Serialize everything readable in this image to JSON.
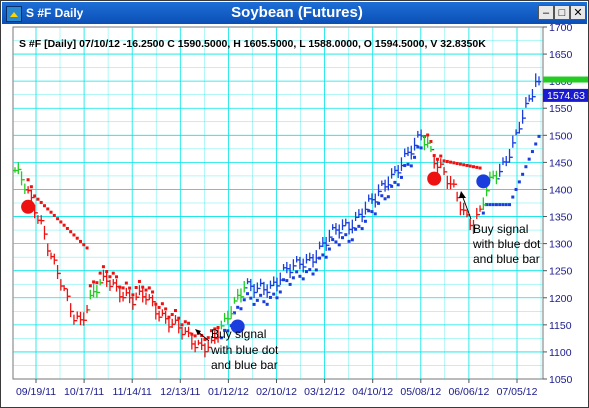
{
  "window": {
    "title": "S #F Daily",
    "chart_title": "Soybean (Futures)",
    "min_glyph": "–",
    "max_glyph": "□",
    "close_glyph": "✕"
  },
  "info_line": "S #F [Daily] 07/10/12  -16.2500 C 1590.5000, H 1605.5000, L 1588.0000, O 1594.5000, V 32.8350K",
  "annotations": [
    {
      "lines": [
        "Buy signal",
        "with blue dot",
        "and blue bar"
      ]
    },
    {
      "lines": [
        "Buy signal",
        "with blue dot",
        "and blue bar"
      ]
    }
  ],
  "colors": {
    "green": "#22cc22",
    "red": "#ee1111",
    "blue": "#1a3ddd",
    "grid": "#00e5e5",
    "axis_text": "#1a1a8c",
    "price_box": "#1a1ad0"
  },
  "chart_data": {
    "type": "ohlc",
    "x_tick_labels": [
      "09/19/11",
      "10/17/11",
      "11/14/11",
      "12/13/11",
      "01/12/12",
      "02/10/12",
      "03/12/12",
      "04/10/12",
      "05/08/12",
      "06/06/12",
      "07/05/12"
    ],
    "y_ticks": [
      1050,
      1100,
      1150,
      1200,
      1250,
      1300,
      1350,
      1400,
      1450,
      1500,
      1550,
      1600,
      1650,
      1700
    ],
    "ylim": [
      1050,
      1700
    ],
    "grid": true,
    "last_price_label": "1574.63",
    "last_price": 1574.63,
    "green_marker_price": 1603,
    "price_anchors": [
      [
        0,
        1435
      ],
      [
        2,
        1415
      ],
      [
        5,
        1375
      ],
      [
        8,
        1340
      ],
      [
        12,
        1260
      ],
      [
        16,
        1190
      ],
      [
        18,
        1165
      ],
      [
        20,
        1160
      ],
      [
        24,
        1210
      ],
      [
        28,
        1230
      ],
      [
        32,
        1215
      ],
      [
        36,
        1195
      ],
      [
        40,
        1200
      ],
      [
        44,
        1175
      ],
      [
        48,
        1150
      ],
      [
        52,
        1130
      ],
      [
        56,
        1115
      ],
      [
        60,
        1110
      ],
      [
        62,
        1130
      ],
      [
        64,
        1150
      ],
      [
        66,
        1180
      ],
      [
        68,
        1205
      ],
      [
        70,
        1225
      ],
      [
        74,
        1210
      ],
      [
        78,
        1220
      ],
      [
        82,
        1250
      ],
      [
        86,
        1255
      ],
      [
        90,
        1270
      ],
      [
        94,
        1300
      ],
      [
        98,
        1320
      ],
      [
        102,
        1335
      ],
      [
        106,
        1360
      ],
      [
        110,
        1380
      ],
      [
        114,
        1420
      ],
      [
        118,
        1450
      ],
      [
        122,
        1475
      ],
      [
        124,
        1500
      ],
      [
        126,
        1485
      ],
      [
        128,
        1460
      ],
      [
        130,
        1440
      ],
      [
        132,
        1415
      ],
      [
        134,
        1395
      ],
      [
        136,
        1370
      ],
      [
        138,
        1350
      ],
      [
        140,
        1340
      ],
      [
        142,
        1360
      ],
      [
        144,
        1395
      ],
      [
        146,
        1420
      ],
      [
        148,
        1430
      ],
      [
        150,
        1460
      ],
      [
        152,
        1485
      ],
      [
        154,
        1520
      ],
      [
        156,
        1545
      ],
      [
        158,
        1575
      ],
      [
        159,
        1595
      ],
      [
        160,
        1590
      ]
    ],
    "color_segments": [
      {
        "from": 0,
        "to": 3,
        "color": "green"
      },
      {
        "from": 4,
        "to": 22,
        "color": "red"
      },
      {
        "from": 23,
        "to": 26,
        "color": "green"
      },
      {
        "from": 27,
        "to": 62,
        "color": "red"
      },
      {
        "from": 63,
        "to": 70,
        "color": "green"
      },
      {
        "from": 71,
        "to": 124,
        "color": "blue"
      },
      {
        "from": 125,
        "to": 127,
        "color": "green"
      },
      {
        "from": 128,
        "to": 142,
        "color": "red"
      },
      {
        "from": 143,
        "to": 147,
        "color": "green"
      },
      {
        "from": 148,
        "to": 160,
        "color": "blue"
      }
    ],
    "stop_segments": [
      {
        "from": 4,
        "to": 22,
        "price": 1400,
        "color": "red"
      },
      {
        "from": 23,
        "to": 62,
        "price": 1200,
        "color": "red"
      },
      {
        "from": 63,
        "to": 70,
        "price": 1130,
        "color": "blue"
      },
      {
        "from": 71,
        "to": 124,
        "price": 1205,
        "color": "blue"
      },
      {
        "from": 125,
        "to": 142,
        "price": 1460,
        "color": "red"
      },
      {
        "from": 143,
        "to": 160,
        "price": 1372,
        "color": "blue"
      }
    ],
    "signals": [
      {
        "bar": 4,
        "price": 1368,
        "color": "red"
      },
      {
        "bar": 68,
        "price": 1147,
        "color": "blue"
      },
      {
        "bar": 128,
        "price": 1420,
        "color": "red"
      },
      {
        "bar": 143,
        "price": 1415,
        "color": "blue"
      }
    ]
  }
}
